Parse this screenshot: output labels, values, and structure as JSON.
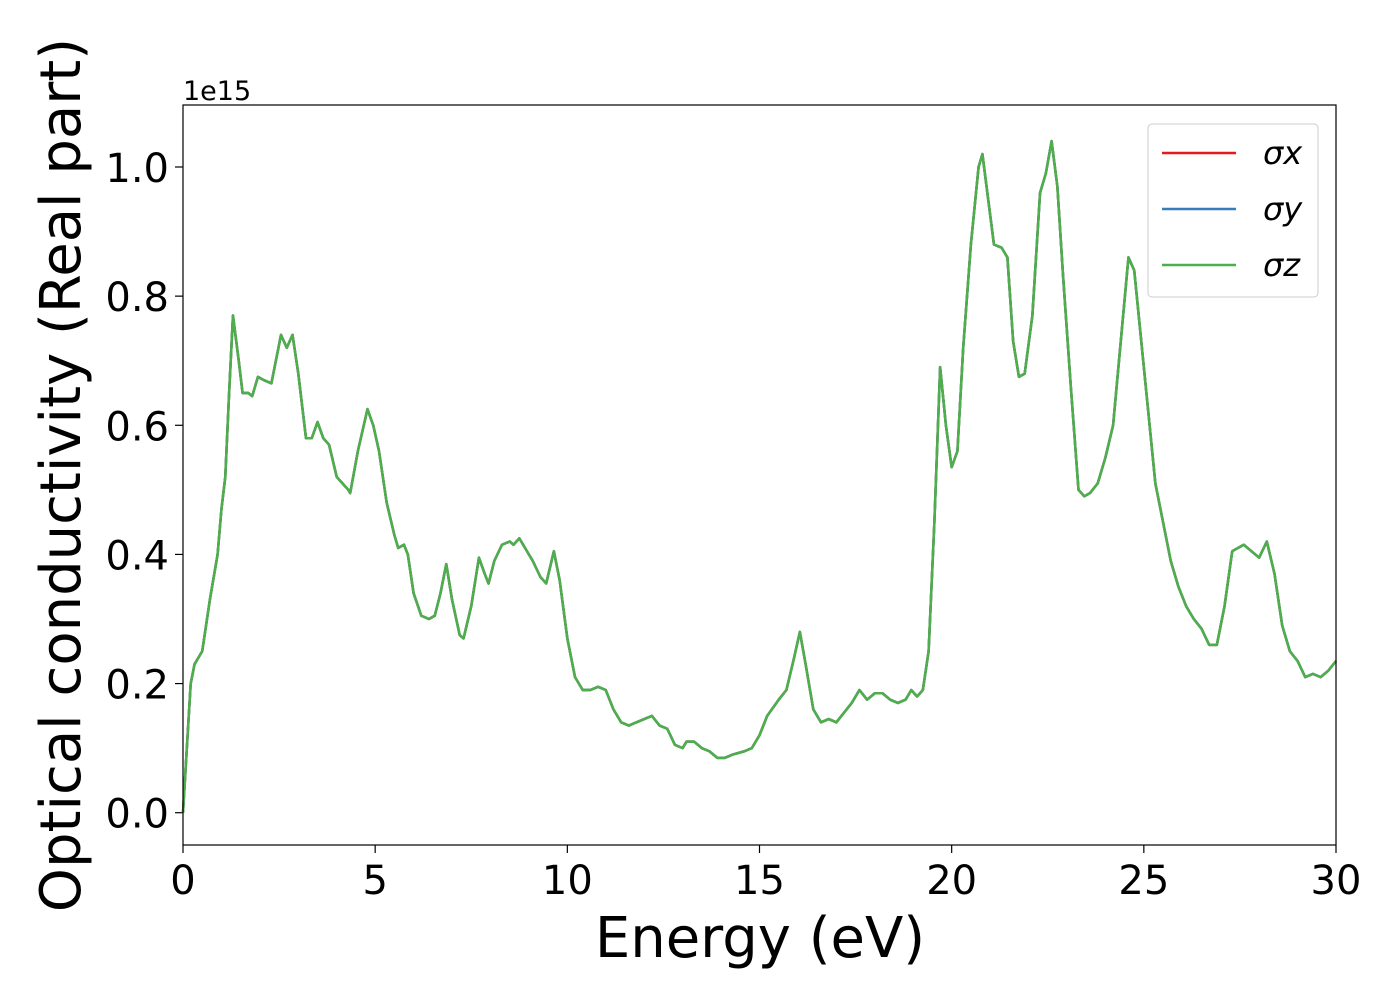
{
  "chart_data": {
    "type": "line",
    "xlabel": "Energy (eV)",
    "ylabel": "Optical conductivity (Real part)",
    "y_offset_text": "1e15",
    "xlim": [
      0,
      30
    ],
    "ylim": [
      -0.05,
      1.096
    ],
    "xticks": [
      0,
      5,
      10,
      15,
      20,
      25,
      30
    ],
    "yticks": [
      {
        "value": 0,
        "label": "0.0"
      },
      {
        "value": 0.2,
        "label": "0.2"
      },
      {
        "value": 0.4,
        "label": "0.4"
      },
      {
        "value": 0.6,
        "label": "0.6"
      },
      {
        "value": 0.8,
        "label": "0.8"
      },
      {
        "value": 1.0,
        "label": "1.0"
      }
    ],
    "legend": "upper right",
    "x": [
      0,
      0.1,
      0.2,
      0.3,
      0.5,
      0.7,
      0.9,
      1.0,
      1.1,
      1.2,
      1.3,
      1.45,
      1.55,
      1.7,
      1.8,
      1.95,
      2.1,
      2.3,
      2.55,
      2.7,
      2.85,
      3.0,
      3.2,
      3.35,
      3.5,
      3.65,
      3.8,
      4.0,
      4.15,
      4.3,
      4.35,
      4.55,
      4.8,
      4.95,
      5.1,
      5.3,
      5.5,
      5.6,
      5.75,
      5.85,
      6.0,
      6.2,
      6.4,
      6.55,
      6.7,
      6.85,
      7.0,
      7.2,
      7.3,
      7.5,
      7.7,
      7.85,
      7.95,
      8.1,
      8.3,
      8.5,
      8.6,
      8.75,
      8.9,
      9.1,
      9.3,
      9.45,
      9.65,
      9.8,
      10.0,
      10.2,
      10.4,
      10.6,
      10.8,
      11.0,
      11.2,
      11.4,
      11.6,
      11.8,
      12.0,
      12.2,
      12.4,
      12.6,
      12.8,
      13.0,
      13.1,
      13.3,
      13.5,
      13.7,
      13.9,
      14.1,
      14.3,
      14.6,
      14.8,
      15.0,
      15.2,
      15.5,
      15.7,
      15.9,
      16.05,
      16.2,
      16.4,
      16.6,
      16.8,
      17.0,
      17.2,
      17.4,
      17.6,
      17.8,
      18.0,
      18.2,
      18.4,
      18.6,
      18.8,
      18.95,
      19.1,
      19.25,
      19.4,
      19.55,
      19.7,
      19.85,
      20.0,
      20.15,
      20.3,
      20.5,
      20.7,
      20.8,
      20.95,
      21.1,
      21.3,
      21.45,
      21.6,
      21.75,
      21.9,
      22.1,
      22.3,
      22.45,
      22.6,
      22.75,
      22.9,
      23.1,
      23.3,
      23.45,
      23.6,
      23.8,
      24.0,
      24.2,
      24.4,
      24.6,
      24.75,
      24.9,
      25.1,
      25.3,
      25.5,
      25.7,
      25.9,
      26.1,
      26.3,
      26.5,
      26.7,
      26.9,
      27.1,
      27.3,
      27.45,
      27.6,
      27.8,
      28.0,
      28.2,
      28.4,
      28.6,
      28.8,
      29.0,
      29.2,
      29.4,
      29.6,
      29.8,
      30.0
    ],
    "series": [
      {
        "name": "σx",
        "color": "#e41a1c",
        "values": [
          0,
          0.1,
          0.2,
          0.23,
          0.25,
          0.33,
          0.4,
          0.47,
          0.52,
          0.65,
          0.77,
          0.7,
          0.65,
          0.65,
          0.645,
          0.675,
          0.67,
          0.665,
          0.74,
          0.72,
          0.74,
          0.68,
          0.58,
          0.58,
          0.605,
          0.58,
          0.57,
          0.52,
          0.51,
          0.5,
          0.495,
          0.56,
          0.625,
          0.6,
          0.56,
          0.48,
          0.43,
          0.41,
          0.415,
          0.4,
          0.34,
          0.305,
          0.3,
          0.305,
          0.34,
          0.385,
          0.33,
          0.275,
          0.27,
          0.32,
          0.395,
          0.37,
          0.355,
          0.39,
          0.415,
          0.42,
          0.415,
          0.425,
          0.41,
          0.39,
          0.365,
          0.355,
          0.405,
          0.36,
          0.27,
          0.21,
          0.19,
          0.19,
          0.195,
          0.19,
          0.16,
          0.14,
          0.135,
          0.14,
          0.145,
          0.15,
          0.135,
          0.13,
          0.105,
          0.1,
          0.11,
          0.11,
          0.1,
          0.095,
          0.085,
          0.085,
          0.09,
          0.095,
          0.1,
          0.12,
          0.15,
          0.175,
          0.19,
          0.24,
          0.28,
          0.23,
          0.16,
          0.14,
          0.145,
          0.14,
          0.155,
          0.17,
          0.19,
          0.175,
          0.185,
          0.185,
          0.175,
          0.17,
          0.175,
          0.19,
          0.18,
          0.19,
          0.25,
          0.45,
          0.69,
          0.6,
          0.535,
          0.56,
          0.72,
          0.88,
          1.0,
          1.02,
          0.95,
          0.88,
          0.875,
          0.86,
          0.73,
          0.675,
          0.68,
          0.77,
          0.96,
          0.99,
          1.04,
          0.97,
          0.83,
          0.66,
          0.5,
          0.49,
          0.495,
          0.51,
          0.55,
          0.6,
          0.73,
          0.86,
          0.84,
          0.75,
          0.63,
          0.51,
          0.45,
          0.39,
          0.35,
          0.32,
          0.3,
          0.285,
          0.26,
          0.26,
          0.32,
          0.405,
          0.41,
          0.415,
          0.405,
          0.395,
          0.42,
          0.37,
          0.29,
          0.25,
          0.235,
          0.21,
          0.215,
          0.21,
          0.22,
          0.235
        ]
      },
      {
        "name": "σy",
        "color": "#377eb8",
        "values": [
          0,
          0.1,
          0.2,
          0.23,
          0.25,
          0.33,
          0.4,
          0.47,
          0.52,
          0.65,
          0.77,
          0.7,
          0.65,
          0.65,
          0.645,
          0.675,
          0.67,
          0.665,
          0.74,
          0.72,
          0.74,
          0.68,
          0.58,
          0.58,
          0.605,
          0.58,
          0.57,
          0.52,
          0.51,
          0.5,
          0.495,
          0.56,
          0.625,
          0.6,
          0.56,
          0.48,
          0.43,
          0.41,
          0.415,
          0.4,
          0.34,
          0.305,
          0.3,
          0.305,
          0.34,
          0.385,
          0.33,
          0.275,
          0.27,
          0.32,
          0.395,
          0.37,
          0.355,
          0.39,
          0.415,
          0.42,
          0.415,
          0.425,
          0.41,
          0.39,
          0.365,
          0.355,
          0.405,
          0.36,
          0.27,
          0.21,
          0.19,
          0.19,
          0.195,
          0.19,
          0.16,
          0.14,
          0.135,
          0.14,
          0.145,
          0.15,
          0.135,
          0.13,
          0.105,
          0.1,
          0.11,
          0.11,
          0.1,
          0.095,
          0.085,
          0.085,
          0.09,
          0.095,
          0.1,
          0.12,
          0.15,
          0.175,
          0.19,
          0.24,
          0.28,
          0.23,
          0.16,
          0.14,
          0.145,
          0.14,
          0.155,
          0.17,
          0.19,
          0.175,
          0.185,
          0.185,
          0.175,
          0.17,
          0.175,
          0.19,
          0.18,
          0.19,
          0.25,
          0.45,
          0.69,
          0.6,
          0.535,
          0.56,
          0.72,
          0.88,
          1.0,
          1.02,
          0.95,
          0.88,
          0.875,
          0.86,
          0.73,
          0.675,
          0.68,
          0.77,
          0.96,
          0.99,
          1.04,
          0.97,
          0.83,
          0.66,
          0.5,
          0.49,
          0.495,
          0.51,
          0.55,
          0.6,
          0.73,
          0.86,
          0.84,
          0.75,
          0.63,
          0.51,
          0.45,
          0.39,
          0.35,
          0.32,
          0.3,
          0.285,
          0.26,
          0.26,
          0.32,
          0.405,
          0.41,
          0.415,
          0.405,
          0.395,
          0.42,
          0.37,
          0.29,
          0.25,
          0.235,
          0.21,
          0.215,
          0.21,
          0.22,
          0.235
        ]
      },
      {
        "name": "σz",
        "color": "#4daf4a",
        "values": [
          0,
          0.1,
          0.2,
          0.23,
          0.25,
          0.33,
          0.4,
          0.47,
          0.52,
          0.65,
          0.77,
          0.7,
          0.65,
          0.65,
          0.645,
          0.675,
          0.67,
          0.665,
          0.74,
          0.72,
          0.74,
          0.68,
          0.58,
          0.58,
          0.605,
          0.58,
          0.57,
          0.52,
          0.51,
          0.5,
          0.495,
          0.56,
          0.625,
          0.6,
          0.56,
          0.48,
          0.43,
          0.41,
          0.415,
          0.4,
          0.34,
          0.305,
          0.3,
          0.305,
          0.34,
          0.385,
          0.33,
          0.275,
          0.27,
          0.32,
          0.395,
          0.37,
          0.355,
          0.39,
          0.415,
          0.42,
          0.415,
          0.425,
          0.41,
          0.39,
          0.365,
          0.355,
          0.405,
          0.36,
          0.27,
          0.21,
          0.19,
          0.19,
          0.195,
          0.19,
          0.16,
          0.14,
          0.135,
          0.14,
          0.145,
          0.15,
          0.135,
          0.13,
          0.105,
          0.1,
          0.11,
          0.11,
          0.1,
          0.095,
          0.085,
          0.085,
          0.09,
          0.095,
          0.1,
          0.12,
          0.15,
          0.175,
          0.19,
          0.24,
          0.28,
          0.23,
          0.16,
          0.14,
          0.145,
          0.14,
          0.155,
          0.17,
          0.19,
          0.175,
          0.185,
          0.185,
          0.175,
          0.17,
          0.175,
          0.19,
          0.18,
          0.19,
          0.25,
          0.45,
          0.69,
          0.6,
          0.535,
          0.56,
          0.72,
          0.88,
          1.0,
          1.02,
          0.95,
          0.88,
          0.875,
          0.86,
          0.73,
          0.675,
          0.68,
          0.77,
          0.96,
          0.99,
          1.04,
          0.97,
          0.83,
          0.66,
          0.5,
          0.49,
          0.495,
          0.51,
          0.55,
          0.6,
          0.73,
          0.86,
          0.84,
          0.75,
          0.63,
          0.51,
          0.45,
          0.39,
          0.35,
          0.32,
          0.3,
          0.285,
          0.26,
          0.26,
          0.32,
          0.405,
          0.41,
          0.415,
          0.405,
          0.395,
          0.42,
          0.37,
          0.29,
          0.25,
          0.235,
          0.21,
          0.215,
          0.21,
          0.22,
          0.235
        ]
      }
    ]
  }
}
